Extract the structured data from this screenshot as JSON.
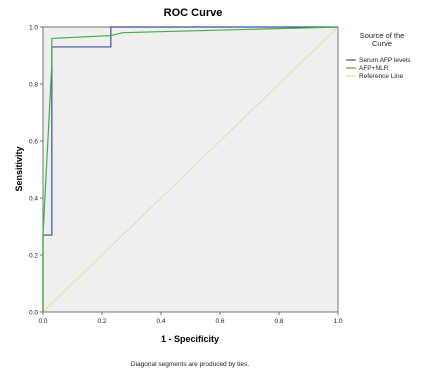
{
  "chart_data": {
    "type": "line",
    "title": "ROC Curve",
    "xlabel": "1 - Specificity",
    "ylabel": "Sensitivity",
    "xlim": [
      0.0,
      1.0
    ],
    "ylim": [
      0.0,
      1.0
    ],
    "xticks": [
      "0.0",
      "0.2",
      "0.4",
      "0.6",
      "0.8",
      "1.0"
    ],
    "yticks": [
      "0.0",
      "0.2",
      "0.4",
      "0.6",
      "0.8",
      "1.0"
    ],
    "grid": false,
    "legend": {
      "title": "Source of the Curve",
      "title_lines": [
        "Source of the",
        "Curve"
      ],
      "placement": "right"
    },
    "series": [
      {
        "name": "Serum AFP levels",
        "color": "#3b4fa0",
        "x": [
          0.0,
          0.0,
          0.03,
          0.03,
          0.23,
          0.23,
          1.0
        ],
        "y": [
          0.0,
          0.27,
          0.27,
          0.93,
          0.93,
          1.0,
          1.0
        ]
      },
      {
        "name": "AFP+NLR",
        "color": "#3fae3f",
        "x": [
          0.0,
          0.0,
          0.03,
          0.03,
          0.23,
          0.27,
          1.0
        ],
        "y": [
          0.0,
          0.27,
          0.87,
          0.96,
          0.97,
          0.98,
          1.0
        ]
      },
      {
        "name": "Reference Line",
        "color": "#e3dca0",
        "x": [
          0.0,
          1.0
        ],
        "y": [
          0.0,
          1.0
        ]
      }
    ],
    "footnote": "Diagonal segments are produced by ties."
  }
}
